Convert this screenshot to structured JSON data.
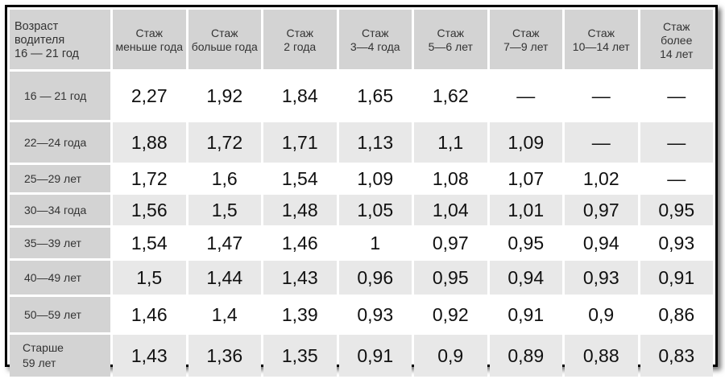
{
  "table": {
    "header": {
      "age_label": "Возраст водителя 16 — 21 год",
      "age_lines": [
        "Возраст",
        "водителя",
        "16 — 21 год"
      ],
      "columns": [
        {
          "lines": [
            "Стаж",
            "меньше года"
          ]
        },
        {
          "lines": [
            "Стаж",
            "больше года"
          ]
        },
        {
          "lines": [
            "Стаж",
            "2 года"
          ]
        },
        {
          "lines": [
            "Стаж",
            "3—4 года"
          ]
        },
        {
          "lines": [
            "Стаж",
            "5—6 лет"
          ]
        },
        {
          "lines": [
            "Стаж",
            "7—9 лет"
          ]
        },
        {
          "lines": [
            "Стаж",
            "10—14 лет"
          ]
        },
        {
          "lines": [
            "Стаж",
            "более",
            "14 лет"
          ]
        }
      ]
    },
    "rows": [
      {
        "label_lines": [
          "16 — 21 год"
        ],
        "values": [
          "2,27",
          "1,92",
          "1,84",
          "1,65",
          "1,62",
          "—",
          "—",
          "—"
        ]
      },
      {
        "label_lines": [
          "22—24 года"
        ],
        "values": [
          "1,88",
          "1,72",
          "1,71",
          "1,13",
          "1,1",
          "1,09",
          "—",
          "—"
        ]
      },
      {
        "label_lines": [
          "25—29 лет"
        ],
        "values": [
          "1,72",
          "1,6",
          "1,54",
          "1,09",
          "1,08",
          "1,07",
          "1,02",
          "—"
        ]
      },
      {
        "label_lines": [
          "30—34 года"
        ],
        "values": [
          "1,56",
          "1,5",
          "1,48",
          "1,05",
          "1,04",
          "1,01",
          "0,97",
          "0,95"
        ]
      },
      {
        "label_lines": [
          "35—39 лет"
        ],
        "values": [
          "1,54",
          "1,47",
          "1,46",
          "1",
          "0,97",
          "0,95",
          "0,94",
          "0,93"
        ]
      },
      {
        "label_lines": [
          "40—49 лет"
        ],
        "values": [
          "1,5",
          "1,44",
          "1,43",
          "0,96",
          "0,95",
          "0,94",
          "0,93",
          "0,91"
        ]
      },
      {
        "label_lines": [
          "50—59 лет"
        ],
        "values": [
          "1,46",
          "1,4",
          "1,39",
          "0,93",
          "0,92",
          "0,91",
          "0,9",
          "0,86"
        ]
      },
      {
        "label_lines": [
          "Старше",
          "59 лет"
        ],
        "values": [
          "1,43",
          "1,36",
          "1,35",
          "0,91",
          "0,9",
          "0,89",
          "0,88",
          "0,83"
        ]
      }
    ]
  }
}
